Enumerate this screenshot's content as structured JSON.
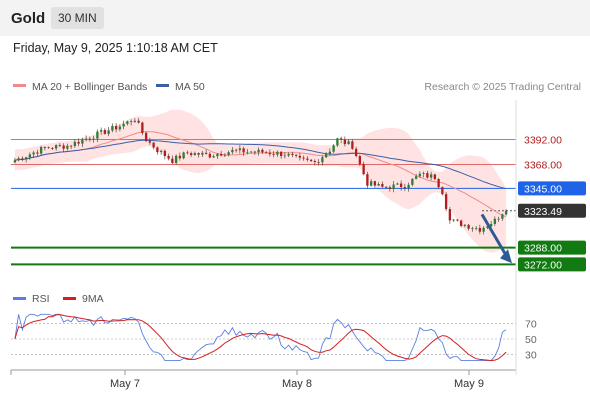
{
  "header": {
    "symbol": "Gold",
    "timeframe": "30 MIN",
    "datetime": "Friday, May 9, 2025 1:10:18 AM CET"
  },
  "legend": {
    "ma20": "MA 20 + Bollinger Bands",
    "ma50": "MA 50",
    "rsi": "RSI",
    "rsi_ma": "9MA"
  },
  "watermark": "Research © 2025 Trading Central",
  "levels": [
    {
      "value": 3392.0,
      "label": "3392.00",
      "style": "resistance"
    },
    {
      "value": 3368.0,
      "label": "3368.00",
      "style": "resistance"
    },
    {
      "value": 3345.0,
      "label": "3345.00",
      "style": "pivot"
    },
    {
      "value": 3323.49,
      "label": "3323.49",
      "style": "last"
    },
    {
      "value": 3288.0,
      "label": "3288.00",
      "style": "target"
    },
    {
      "value": 3272.0,
      "label": "3272.00",
      "style": "target"
    }
  ],
  "colors": {
    "up": "#2e7d32",
    "down": "#b71c1c",
    "band": "#ffdede",
    "ma20": "#f08a8a",
    "ma50": "#3b5ea8",
    "pivot": "#1e63e8",
    "target": "#117a11",
    "resistance": "#e06a6a",
    "last": "#333333",
    "arrow": "#2e5a96",
    "rsi": "#5b7fe0",
    "rsi_ma": "#d42020"
  },
  "chart_data": {
    "type": "candlestick",
    "x_ticks": [
      "May 7",
      "May 8",
      "May 9"
    ],
    "y_range": [
      3255,
      3430
    ],
    "rsi_levels": [
      "70",
      "50",
      "30"
    ],
    "rsi_range": [
      15,
      85
    ],
    "candles": [],
    "ma20": [],
    "ma50": [],
    "rsi": [],
    "rsi_ma": []
  }
}
